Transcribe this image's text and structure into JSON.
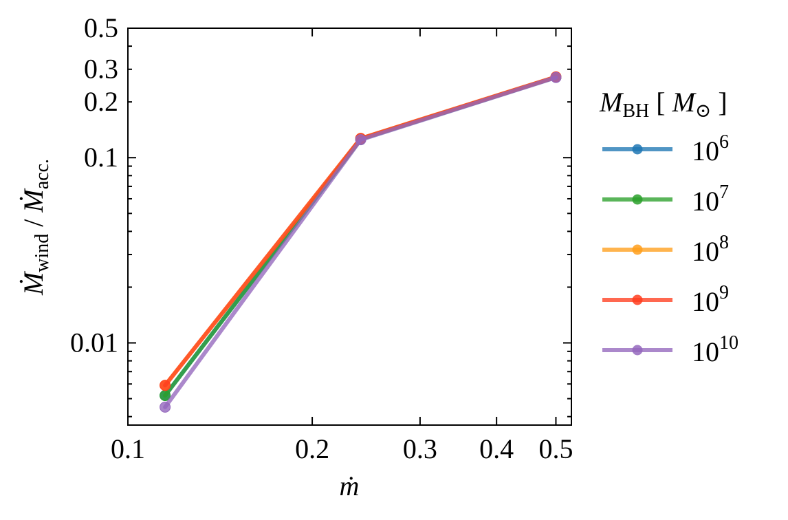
{
  "chart_data": {
    "type": "line",
    "x_scale": "log",
    "y_scale": "log",
    "xlim": [
      0.1,
      0.53
    ],
    "ylim": [
      0.0036,
      0.5
    ],
    "xlabel": "ṁ",
    "ylabel_parts": {
      "main": "Ṁ",
      "sub1": "wind",
      "sep": " / ",
      "main2": "Ṁ",
      "sub2": "acc."
    },
    "x_ticks": [
      {
        "value": 0.1,
        "label": "0.1"
      },
      {
        "value": 0.2,
        "label": "0.2"
      },
      {
        "value": 0.3,
        "label": "0.3"
      },
      {
        "value": 0.4,
        "label": "0.4"
      },
      {
        "value": 0.5,
        "label": "0.5"
      }
    ],
    "y_ticks": [
      {
        "value": 0.01,
        "label": "0.01"
      },
      {
        "value": 0.1,
        "label": "0.1"
      },
      {
        "value": 0.2,
        "label": "0.2"
      },
      {
        "value": 0.3,
        "label": "0.3"
      },
      {
        "value": 0.5,
        "label": "0.5"
      }
    ],
    "legend": {
      "title_main": "M",
      "title_sub": "BH",
      "title_bracket_open": "[",
      "title_unit": "M",
      "title_unit_sub": "⊙",
      "title_bracket_close": "]",
      "placement": "outside-right"
    },
    "series": [
      {
        "name": "10^6",
        "base": "10",
        "exp": "6",
        "color": "#1f77b4",
        "x": [
          0.115,
          0.24,
          0.5
        ],
        "y": [
          0.0052,
          0.126,
          0.272
        ]
      },
      {
        "name": "10^7",
        "base": "10",
        "exp": "7",
        "color": "#2ca02c",
        "x": [
          0.115,
          0.24,
          0.5
        ],
        "y": [
          0.0052,
          0.126,
          0.272
        ]
      },
      {
        "name": "10^8",
        "base": "10",
        "exp": "8",
        "color": "#ff9f1c",
        "x": [
          0.115,
          0.24,
          0.5
        ],
        "y": [
          0.0059,
          0.127,
          0.273
        ]
      },
      {
        "name": "10^9",
        "base": "10",
        "exp": "9",
        "color": "#ff3d1f",
        "x": [
          0.115,
          0.24,
          0.5
        ],
        "y": [
          0.0059,
          0.127,
          0.273
        ]
      },
      {
        "name": "10^10",
        "base": "10",
        "exp": "10",
        "color": "#9467bd",
        "x": [
          0.115,
          0.24,
          0.5
        ],
        "y": [
          0.0045,
          0.125,
          0.271
        ]
      }
    ]
  }
}
